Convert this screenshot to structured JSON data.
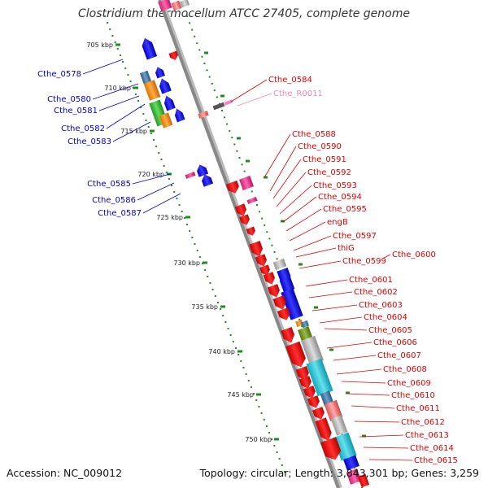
{
  "title": "Clostridium thermocellum ATCC 27405, complete genome",
  "accession": "Accession: NC_009012",
  "topology": "Topology: circular; Length: 3,843,301 bp; Genes: 3,259",
  "colors": {
    "backbone": "#888888",
    "tick_mark": "#228b22",
    "forward_label": "#0000cc",
    "reverse_label": "#e00000",
    "rna_label": "#ee88bb"
  },
  "scale_ticks": [
    "705 kbp",
    "710 kbp",
    "715 kbp",
    "720 kbp",
    "725 kbp",
    "730 kbp",
    "735 kbp",
    "740 kbp",
    "745 kbp",
    "750 kbp"
  ],
  "forward_labels": [
    "Cthe_0578",
    "Cthe_0580",
    "Cthe_0581",
    "Cthe_0582",
    "Cthe_0583",
    "Cthe_0585",
    "Cthe_0586",
    "Cthe_0587"
  ],
  "reverse_labels": [
    "Cthe_0584",
    "Cthe_R0011",
    "Cthe_0588",
    "Cthe_0590",
    "Cthe_0591",
    "Cthe_0592",
    "Cthe_0593",
    "Cthe_0594",
    "Cthe_0595",
    "engB",
    "Cthe_0597",
    "thiG",
    "Cthe_0599",
    "Cthe_0600",
    "Cthe_0601",
    "Cthe_0602",
    "Cthe_0603",
    "Cthe_0604",
    "Cthe_0605",
    "Cthe_0606",
    "Cthe_0607",
    "Cthe_0608",
    "Cthe_0609",
    "Cthe_0610",
    "Cthe_0611",
    "Cthe_0612",
    "Cthe_0613",
    "Cthe_0614",
    "Cthe_0615"
  ]
}
